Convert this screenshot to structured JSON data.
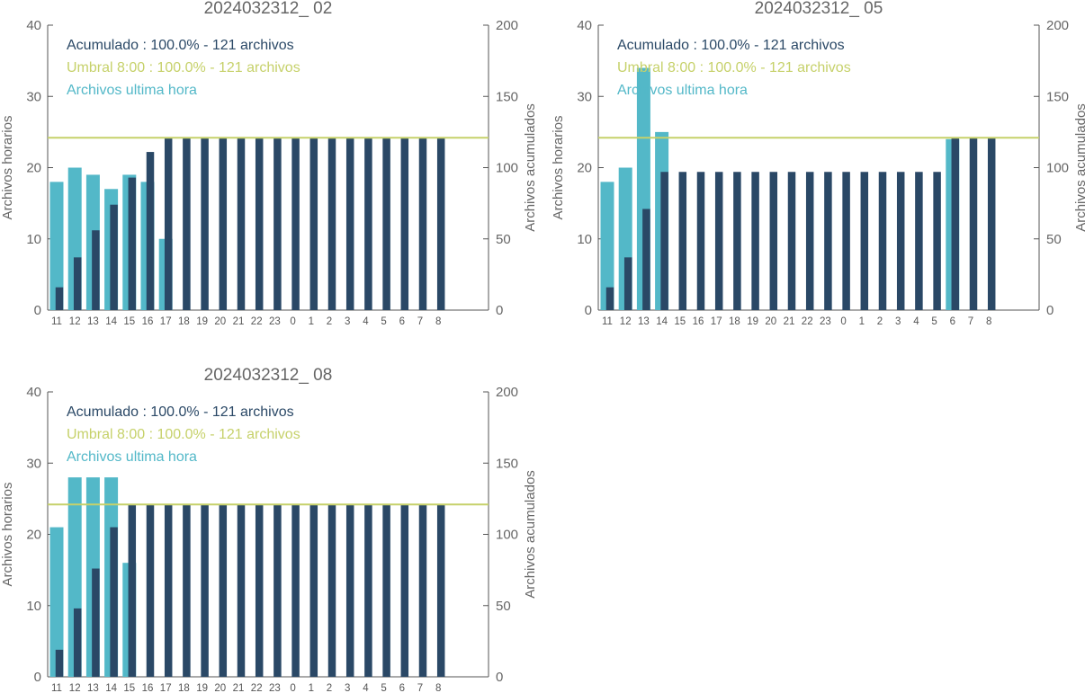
{
  "colors": {
    "hourly": "#53b8c8",
    "cumulative": "#2a4866",
    "threshold": "#c6d16a",
    "axis": "#555555",
    "text": "#666666"
  },
  "chart_data": [
    {
      "type": "bar",
      "title": "2024032312_ 02",
      "ylabel": "Archivos horarios",
      "y2label": "Archivos acumulados",
      "ylim": [
        0,
        40
      ],
      "y2lim": [
        0,
        200
      ],
      "yticks": [
        "0",
        "10",
        "20",
        "30",
        "40"
      ],
      "y2ticks": [
        "0",
        "50",
        "100",
        "150",
        "200"
      ],
      "categories": [
        "11",
        "12",
        "13",
        "14",
        "15",
        "16",
        "17",
        "18",
        "19",
        "20",
        "21",
        "22",
        "23",
        "0",
        "1",
        "2",
        "3",
        "4",
        "5",
        "6",
        "7",
        "8"
      ],
      "legend": {
        "cumulative": "Acumulado : 100.0% - 121 archivos",
        "threshold": "Umbral 8:00 : 100.0% - 121 archivos",
        "hourly": "Archivos ultima hora"
      },
      "threshold_value": 121,
      "series": [
        {
          "key": "hourly",
          "axis": "left",
          "values": [
            18,
            20,
            19,
            17,
            19,
            18,
            10,
            0,
            0,
            0,
            0,
            0,
            0,
            0,
            0,
            0,
            0,
            0,
            0,
            0,
            0,
            0
          ]
        },
        {
          "key": "cumulative",
          "axis": "right",
          "values": [
            16,
            37,
            56,
            74,
            93,
            111,
            121,
            121,
            121,
            121,
            121,
            121,
            121,
            121,
            121,
            121,
            121,
            121,
            121,
            121,
            121,
            121
          ]
        }
      ]
    },
    {
      "type": "bar",
      "title": "2024032312_ 05",
      "ylabel": "Archivos horarios",
      "y2label": "Archivos acumulados",
      "ylim": [
        0,
        40
      ],
      "y2lim": [
        0,
        200
      ],
      "yticks": [
        "0",
        "10",
        "20",
        "30",
        "40"
      ],
      "y2ticks": [
        "0",
        "50",
        "100",
        "150",
        "200"
      ],
      "categories": [
        "11",
        "12",
        "13",
        "14",
        "15",
        "16",
        "17",
        "18",
        "19",
        "20",
        "21",
        "22",
        "23",
        "0",
        "1",
        "2",
        "3",
        "4",
        "5",
        "6",
        "7",
        "8"
      ],
      "legend": {
        "cumulative": "Acumulado : 100.0% - 121 archivos",
        "threshold": "Umbral 8:00 : 100.0% - 121 archivos",
        "hourly": "Archivos ultima hora"
      },
      "threshold_value": 121,
      "series": [
        {
          "key": "hourly",
          "axis": "left",
          "values": [
            18,
            20,
            34,
            25,
            0,
            0,
            0,
            0,
            0,
            0,
            0,
            0,
            0,
            0,
            0,
            0,
            0,
            0,
            0,
            24,
            0,
            0
          ]
        },
        {
          "key": "cumulative",
          "axis": "right",
          "values": [
            16,
            37,
            71,
            97,
            97,
            97,
            97,
            97,
            97,
            97,
            97,
            97,
            97,
            97,
            97,
            97,
            97,
            97,
            97,
            121,
            121,
            121
          ]
        }
      ]
    },
    {
      "type": "bar",
      "title": "2024032312_ 08",
      "ylabel": "Archivos horarios",
      "y2label": "Archivos acumulados",
      "ylim": [
        0,
        40
      ],
      "y2lim": [
        0,
        200
      ],
      "yticks": [
        "0",
        "10",
        "20",
        "30",
        "40"
      ],
      "y2ticks": [
        "0",
        "50",
        "100",
        "150",
        "200"
      ],
      "categories": [
        "11",
        "12",
        "13",
        "14",
        "15",
        "16",
        "17",
        "18",
        "19",
        "20",
        "21",
        "22",
        "23",
        "0",
        "1",
        "2",
        "3",
        "4",
        "5",
        "6",
        "7",
        "8"
      ],
      "legend": {
        "cumulative": "Acumulado : 100.0% - 121 archivos",
        "threshold": "Umbral 8:00 : 100.0% - 121 archivos",
        "hourly": "Archivos ultima hora"
      },
      "threshold_value": 121,
      "series": [
        {
          "key": "hourly",
          "axis": "left",
          "values": [
            21,
            28,
            28,
            28,
            16,
            0,
            0,
            0,
            0,
            0,
            0,
            0,
            0,
            0,
            0,
            0,
            0,
            0,
            0,
            0,
            0,
            0
          ]
        },
        {
          "key": "cumulative",
          "axis": "right",
          "values": [
            19,
            48,
            76,
            105,
            121,
            121,
            121,
            121,
            121,
            121,
            121,
            121,
            121,
            121,
            121,
            121,
            121,
            121,
            121,
            121,
            121,
            121
          ]
        }
      ]
    }
  ]
}
